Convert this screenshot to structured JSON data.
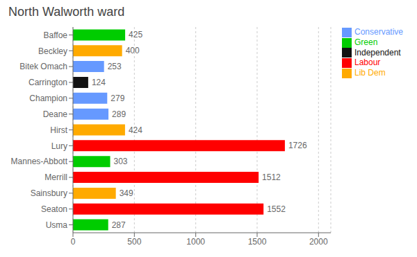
{
  "chart_data": {
    "type": "bar",
    "title": "North Walworth ward",
    "orientation": "horizontal",
    "stacked": true,
    "data_labels": true,
    "grid": true,
    "categories": [
      "Baffoe",
      "Beckley",
      "Bitek Omach",
      "Carrington",
      "Champion",
      "Deane",
      "Hirst",
      "Lury",
      "Mannes-Abbott",
      "Merrill",
      "Sainsbury",
      "Seaton",
      "Usma"
    ],
    "series": [
      {
        "name": "Conservative",
        "color": "#6699ff",
        "values": [
          null,
          null,
          253,
          null,
          279,
          289,
          null,
          null,
          null,
          null,
          null,
          null,
          null
        ]
      },
      {
        "name": "Green",
        "color": "#00cc00",
        "values": [
          425,
          null,
          null,
          null,
          null,
          null,
          null,
          null,
          303,
          null,
          null,
          null,
          287
        ]
      },
      {
        "name": "Independent",
        "color": "#111111",
        "values": [
          null,
          null,
          null,
          124,
          null,
          null,
          null,
          null,
          null,
          null,
          null,
          null,
          null
        ]
      },
      {
        "name": "Labour",
        "color": "#ff0000",
        "values": [
          null,
          null,
          null,
          null,
          null,
          null,
          null,
          1726,
          null,
          1512,
          null,
          1552,
          null
        ]
      },
      {
        "name": "Lib Dem",
        "color": "#ffaa00",
        "values": [
          null,
          400,
          null,
          null,
          null,
          null,
          424,
          null,
          null,
          null,
          349,
          null,
          null
        ]
      }
    ],
    "xlim": [
      0,
      2100
    ],
    "xticks": [
      0,
      500,
      1000,
      1500,
      2000
    ]
  }
}
